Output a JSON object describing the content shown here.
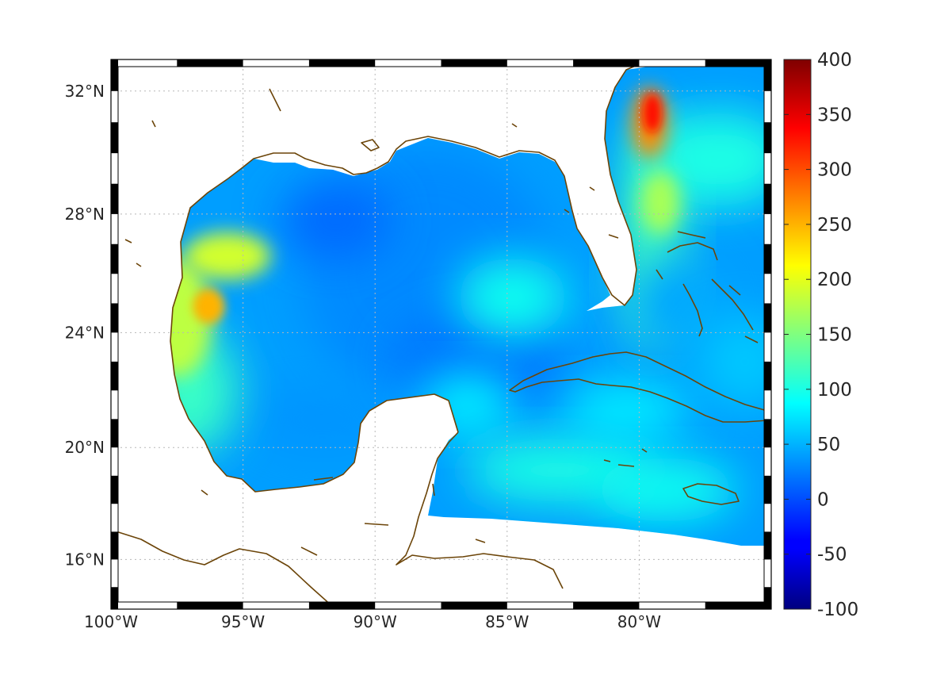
{
  "map": {
    "projection": "mercator",
    "lon_range": [
      -100,
      -75
    ],
    "lat_range": [
      14.2,
      33
    ],
    "frame": "black-and-white checkered border",
    "gridlines": "dotted grey",
    "coastline_color": "#6b4408",
    "land_color": "#ffffff",
    "lon_ticks": [
      {
        "value": -100,
        "label": "100°W"
      },
      {
        "value": -95,
        "label": "95°W"
      },
      {
        "value": -90,
        "label": "90°W"
      },
      {
        "value": -85,
        "label": "85°W"
      },
      {
        "value": -80,
        "label": "80°W"
      }
    ],
    "lat_ticks": [
      {
        "value": 16,
        "label": "16°N"
      },
      {
        "value": 20,
        "label": "20°N"
      },
      {
        "value": 24,
        "label": "24°N"
      },
      {
        "value": 28,
        "label": "28°N"
      },
      {
        "value": 32,
        "label": "32°N"
      }
    ],
    "features": [
      {
        "name": "gulf-stream-maximum",
        "lon": -79.5,
        "lat": 31.3,
        "value": 330
      },
      {
        "name": "western-gulf-maximum",
        "lon": -96.3,
        "lat": 24.9,
        "value": 250
      },
      {
        "name": "western-gulf-upper-maximum",
        "lon": -95.6,
        "lat": 26.6,
        "value": 190
      }
    ]
  },
  "colorbar": {
    "colormap": "jet",
    "min": -100,
    "max": 400,
    "labels": [
      "400",
      "350",
      "300",
      "250",
      "200",
      "150",
      "100",
      "50",
      "0",
      "-50",
      "-100"
    ],
    "values": [
      400,
      350,
      300,
      250,
      200,
      150,
      100,
      50,
      0,
      -50,
      -100
    ]
  }
}
